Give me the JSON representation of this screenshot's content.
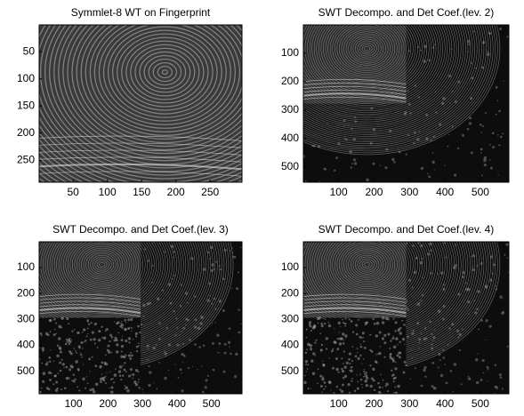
{
  "chart_data": [
    {
      "type": "image",
      "title": "Symmlet-8 WT on Fingerprint",
      "xlim": [
        0.5,
        296.5
      ],
      "ylim": [
        0.5,
        290.5
      ],
      "y_reversed": true,
      "xticks": [
        50,
        100,
        150,
        200,
        250
      ],
      "yticks": [
        50,
        100,
        150,
        200,
        250
      ]
    },
    {
      "type": "image",
      "title": "SWT Decompo. and Det Coef.(lev. 2)",
      "xlim": [
        0.5,
        580.5
      ],
      "ylim": [
        0.5,
        553.5
      ],
      "y_reversed": true,
      "xticks": [
        100,
        200,
        300,
        400,
        500
      ],
      "yticks": [
        100,
        200,
        300,
        400,
        500
      ]
    },
    {
      "type": "image",
      "title": "SWT Decompo. and Det Coef.(lev. 3)",
      "xlim": [
        0.5,
        588.5
      ],
      "ylim": [
        0.5,
        586.5
      ],
      "y_reversed": true,
      "xticks": [
        100,
        200,
        300,
        400,
        500
      ],
      "yticks": [
        100,
        200,
        300,
        400,
        500
      ]
    },
    {
      "type": "image",
      "title": "SWT Decompo. and Det Coef.(lev. 4)",
      "xlim": [
        0.5,
        580.5
      ],
      "ylim": [
        0.5,
        586.5
      ],
      "y_reversed": true,
      "xticks": [
        100,
        200,
        300,
        400,
        500
      ],
      "yticks": [
        100,
        200,
        300,
        400,
        500
      ]
    }
  ]
}
